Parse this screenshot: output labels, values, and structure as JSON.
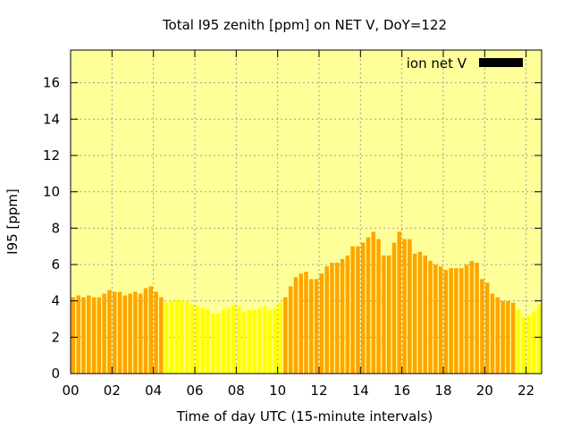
{
  "chart_data": {
    "type": "bar",
    "title": "Total I95 zenith [ppm] on NET V, DoY=122",
    "xlabel": "Time of day UTC (15-minute intervals)",
    "ylabel": "I95 [ppm]",
    "xlim": [
      0,
      22.75
    ],
    "ylim": [
      0,
      17.8
    ],
    "x_ticks": [
      "00",
      "02",
      "04",
      "06",
      "08",
      "10",
      "12",
      "14",
      "16",
      "18",
      "20",
      "22"
    ],
    "y_ticks": [
      "0",
      "2",
      "4",
      "6",
      "8",
      "10",
      "12",
      "14",
      "16"
    ],
    "grid": true,
    "legend": {
      "position": "top-right",
      "label": "ion net V",
      "color": "#000000"
    },
    "colors": {
      "high": "#ffa500",
      "low": "#ffff00",
      "plot_bg": "#ffff99"
    },
    "x_start": 0,
    "x_step": 0.25,
    "values": [
      4.2,
      4.3,
      4.2,
      4.3,
      4.2,
      4.2,
      4.4,
      4.6,
      4.5,
      4.5,
      4.3,
      4.4,
      4.5,
      4.4,
      4.7,
      4.8,
      4.5,
      4.2,
      3.9,
      4.0,
      4.1,
      4.0,
      4.0,
      3.8,
      3.7,
      3.6,
      3.5,
      3.3,
      3.3,
      3.5,
      3.6,
      3.8,
      3.7,
      3.4,
      3.5,
      3.5,
      3.6,
      3.7,
      3.5,
      3.6,
      3.9,
      4.2,
      4.8,
      5.3,
      5.5,
      5.6,
      5.2,
      5.2,
      5.5,
      5.9,
      6.1,
      6.1,
      6.3,
      6.5,
      7.0,
      7.0,
      7.2,
      7.5,
      7.8,
      7.4,
      6.5,
      6.5,
      7.2,
      7.8,
      7.4,
      7.4,
      6.6,
      6.7,
      6.5,
      6.2,
      6.0,
      5.9,
      5.7,
      5.8,
      5.8,
      5.8,
      6.0,
      6.2,
      6.1,
      5.2,
      5.0,
      4.4,
      4.2,
      4.0,
      4.0,
      3.9,
      3.5,
      3.1,
      3.2,
      3.4,
      3.8
    ],
    "categories": [
      "high",
      "high",
      "high",
      "high",
      "high",
      "high",
      "high",
      "high",
      "high",
      "high",
      "high",
      "high",
      "high",
      "high",
      "high",
      "high",
      "high",
      "high",
      "low",
      "low",
      "low",
      "low",
      "low",
      "low",
      "low",
      "low",
      "low",
      "low",
      "low",
      "low",
      "low",
      "low",
      "low",
      "low",
      "low",
      "low",
      "low",
      "low",
      "low",
      "low",
      "low",
      "high",
      "high",
      "high",
      "high",
      "high",
      "high",
      "high",
      "high",
      "high",
      "high",
      "high",
      "high",
      "high",
      "high",
      "high",
      "high",
      "high",
      "high",
      "high",
      "high",
      "high",
      "high",
      "high",
      "high",
      "high",
      "high",
      "high",
      "high",
      "high",
      "high",
      "high",
      "high",
      "high",
      "high",
      "high",
      "high",
      "high",
      "high",
      "high",
      "high",
      "high",
      "high",
      "high",
      "high",
      "high",
      "low",
      "low",
      "low",
      "low",
      "low"
    ]
  }
}
